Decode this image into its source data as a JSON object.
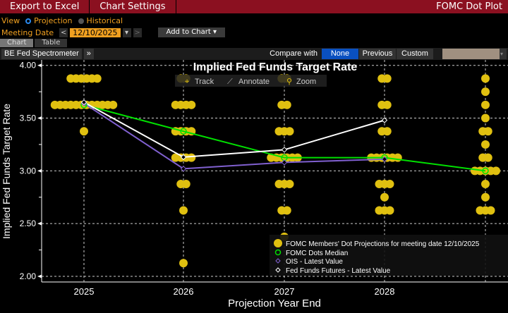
{
  "topbar": {
    "export": "Export to Excel",
    "settings": "Chart Settings",
    "title": "FOMC Dot Plot"
  },
  "view": {
    "label": "View",
    "projection": "Projection",
    "historical": "Historical",
    "selected": "Projection"
  },
  "meeting": {
    "label": "Meeting Date",
    "prev": "<",
    "date": "12/10/2025",
    "dropdown": "▾",
    "next": ">",
    "add_to_chart": "Add to Chart ▾"
  },
  "tabs": [
    {
      "label": "Chart",
      "active": true
    },
    {
      "label": "Table",
      "active": false
    }
  ],
  "toolbar": {
    "spectrometer": "BE Fed Spectrometer",
    "expand": "»",
    "compare_label": "Compare with",
    "options": [
      "None",
      "Previous",
      "Custom"
    ],
    "selected": "None"
  },
  "chart_tools": {
    "track": "Track",
    "annotate": "Annotate",
    "zoom": "Zoom"
  },
  "chart_data": {
    "type": "scatter",
    "title": "Implied Fed Funds Target Rate",
    "xlabel": "Projection Year End",
    "ylabel": "Implied Fed Funds Target Rate",
    "ylim": [
      2.0,
      4.0
    ],
    "yticks": [
      "2.00",
      "2.50",
      "3.00",
      "3.50",
      "4.00"
    ],
    "categories": [
      "2025",
      "2026",
      "2027",
      "2028",
      ""
    ],
    "grid": true,
    "legend_placement": "bottom-right",
    "colors": {
      "dots": "#e0c010",
      "median": "#00e000",
      "ois": "#8060d0",
      "futures": "#ffffff"
    },
    "dots": [
      [
        [
          3.875,
          6
        ],
        [
          3.625,
          12
        ],
        [
          3.375,
          1
        ]
      ],
      [
        [
          3.875,
          2
        ],
        [
          3.625,
          4
        ],
        [
          3.375,
          4
        ],
        [
          3.125,
          4
        ],
        [
          2.875,
          2
        ],
        [
          2.625,
          1
        ],
        [
          2.125,
          1
        ]
      ],
      [
        [
          3.875,
          2
        ],
        [
          3.625,
          2
        ],
        [
          3.375,
          3
        ],
        [
          3.125,
          6
        ],
        [
          2.875,
          3
        ],
        [
          2.625,
          2
        ],
        [
          2.375,
          1
        ]
      ],
      [
        [
          3.875,
          2
        ],
        [
          3.625,
          2
        ],
        [
          3.375,
          2
        ],
        [
          3.125,
          6
        ],
        [
          2.875,
          3
        ],
        [
          2.75,
          1
        ],
        [
          2.625,
          3
        ]
      ],
      [
        [
          3.875,
          1
        ],
        [
          3.75,
          1
        ],
        [
          3.625,
          1
        ],
        [
          3.5,
          1
        ],
        [
          3.375,
          2
        ],
        [
          3.25,
          1
        ],
        [
          3.125,
          2
        ],
        [
          3.0,
          5
        ],
        [
          2.875,
          1
        ],
        [
          2.75,
          1
        ],
        [
          2.625,
          3
        ]
      ]
    ],
    "series": [
      {
        "name": "FOMC Dots Median",
        "values": [
          3.625,
          3.375,
          3.125,
          3.125,
          3.0
        ]
      },
      {
        "name": "OIS - Latest Value",
        "values": [
          3.64,
          3.02,
          3.08,
          3.11
        ]
      },
      {
        "name": "Fed Funds Futures - Latest Value",
        "values": [
          3.65,
          3.13,
          3.2,
          3.48
        ]
      }
    ],
    "legend": [
      "FOMC Members' Dot Projections for meeting date 12/10/2025",
      "FOMC Dots Median",
      "OIS - Latest Value",
      "Fed Funds Futures - Latest Value"
    ]
  }
}
